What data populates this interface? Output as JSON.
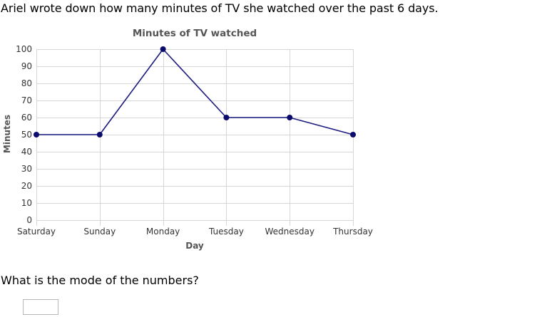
{
  "prompt": "Ariel wrote down how many minutes of TV she watched over the past 6 days.",
  "question": "What is the mode of the numbers?",
  "answer": {
    "value": ""
  },
  "colors": {
    "line": "#1a1a80",
    "point": "#0b0b6e",
    "grid": "#d6d6d6"
  },
  "chart_data": {
    "type": "line",
    "title": "Minutes of TV watched",
    "xlabel": "Day",
    "ylabel": "Minutes",
    "categories": [
      "Saturday",
      "Sunday",
      "Monday",
      "Tuesday",
      "Wednesday",
      "Thursday"
    ],
    "series": [
      {
        "values": [
          50,
          50,
          100,
          60,
          60,
          50
        ]
      }
    ],
    "ylim": [
      0,
      100
    ],
    "yticks": [
      0,
      10,
      20,
      30,
      40,
      50,
      60,
      70,
      80,
      90,
      100
    ],
    "grid": true,
    "legend": "none"
  }
}
